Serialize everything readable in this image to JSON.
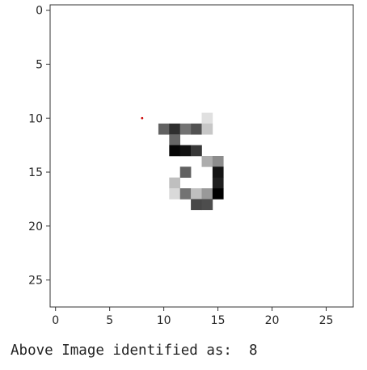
{
  "chart_data": {
    "type": "heatmap",
    "title": "",
    "xlabel": "",
    "ylabel": "",
    "grid": false,
    "colormap": "gray_r",
    "image_size": [
      28,
      28
    ],
    "xlim": [
      -0.5,
      27.5
    ],
    "ylim": [
      27.5,
      -0.5
    ],
    "xticks": [
      0,
      5,
      10,
      15,
      20,
      25
    ],
    "yticks": [
      0,
      5,
      10,
      15,
      20,
      25
    ],
    "value_range": [
      0,
      1
    ],
    "pixels": [
      {
        "row": 10,
        "col": 14,
        "v": 0.12
      },
      {
        "row": 11,
        "col": 10,
        "v": 0.62
      },
      {
        "row": 11,
        "col": 11,
        "v": 0.82
      },
      {
        "row": 11,
        "col": 12,
        "v": 0.55
      },
      {
        "row": 11,
        "col": 13,
        "v": 0.68
      },
      {
        "row": 11,
        "col": 14,
        "v": 0.22
      },
      {
        "row": 12,
        "col": 11,
        "v": 0.6
      },
      {
        "row": 13,
        "col": 11,
        "v": 0.98
      },
      {
        "row": 13,
        "col": 12,
        "v": 0.93
      },
      {
        "row": 13,
        "col": 13,
        "v": 0.78
      },
      {
        "row": 14,
        "col": 14,
        "v": 0.32
      },
      {
        "row": 14,
        "col": 15,
        "v": 0.45
      },
      {
        "row": 15,
        "col": 12,
        "v": 0.62
      },
      {
        "row": 15,
        "col": 15,
        "v": 0.92
      },
      {
        "row": 16,
        "col": 11,
        "v": 0.25
      },
      {
        "row": 16,
        "col": 15,
        "v": 0.88
      },
      {
        "row": 17,
        "col": 11,
        "v": 0.15
      },
      {
        "row": 17,
        "col": 12,
        "v": 0.55
      },
      {
        "row": 17,
        "col": 13,
        "v": 0.25
      },
      {
        "row": 17,
        "col": 14,
        "v": 0.4
      },
      {
        "row": 17,
        "col": 15,
        "v": 1.0
      },
      {
        "row": 18,
        "col": 13,
        "v": 0.72
      },
      {
        "row": 18,
        "col": 14,
        "v": 0.7
      }
    ],
    "marker": {
      "x": 8,
      "y": 10,
      "color": "#cc0000"
    }
  },
  "caption": {
    "text": "Above Image identified as:  8"
  }
}
